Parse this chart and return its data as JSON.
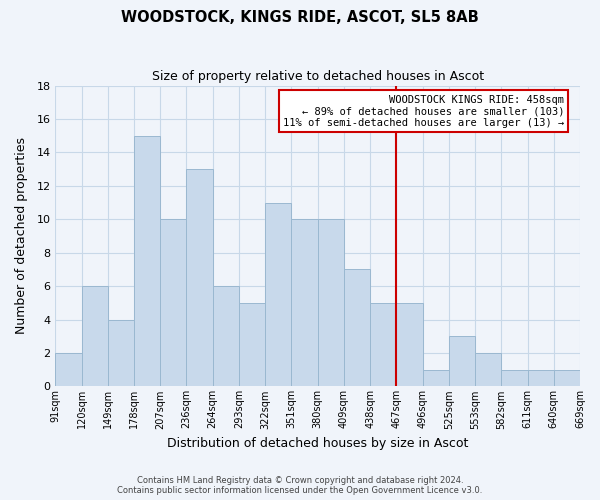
{
  "title": "WOODSTOCK, KINGS RIDE, ASCOT, SL5 8AB",
  "subtitle": "Size of property relative to detached houses in Ascot",
  "xlabel": "Distribution of detached houses by size in Ascot",
  "ylabel": "Number of detached properties",
  "bin_labels": [
    "91sqm",
    "120sqm",
    "149sqm",
    "178sqm",
    "207sqm",
    "236sqm",
    "264sqm",
    "293sqm",
    "322sqm",
    "351sqm",
    "380sqm",
    "409sqm",
    "438sqm",
    "467sqm",
    "496sqm",
    "525sqm",
    "553sqm",
    "582sqm",
    "611sqm",
    "640sqm",
    "669sqm"
  ],
  "bar_heights": [
    2,
    6,
    4,
    15,
    10,
    13,
    6,
    5,
    11,
    10,
    10,
    7,
    5,
    5,
    1,
    3,
    2,
    1,
    1,
    1
  ],
  "bar_color": "#c8d9eb",
  "bar_edge_color": "#9ab8d0",
  "grid_color": "#c8d8e8",
  "background_color": "#f0f4fa",
  "red_line_color": "#cc0000",
  "annotation_line1": "WOODSTOCK KINGS RIDE: 458sqm",
  "annotation_line2": "← 89% of detached houses are smaller (103)",
  "annotation_line3": "11% of semi-detached houses are larger (13) →",
  "annotation_box_facecolor": "#ffffff",
  "annotation_box_edgecolor": "#cc0000",
  "ylim": [
    0,
    18
  ],
  "yticks": [
    0,
    2,
    4,
    6,
    8,
    10,
    12,
    14,
    16,
    18
  ],
  "footer_line1": "Contains HM Land Registry data © Crown copyright and database right 2024.",
  "footer_line2": "Contains public sector information licensed under the Open Government Licence v3.0."
}
